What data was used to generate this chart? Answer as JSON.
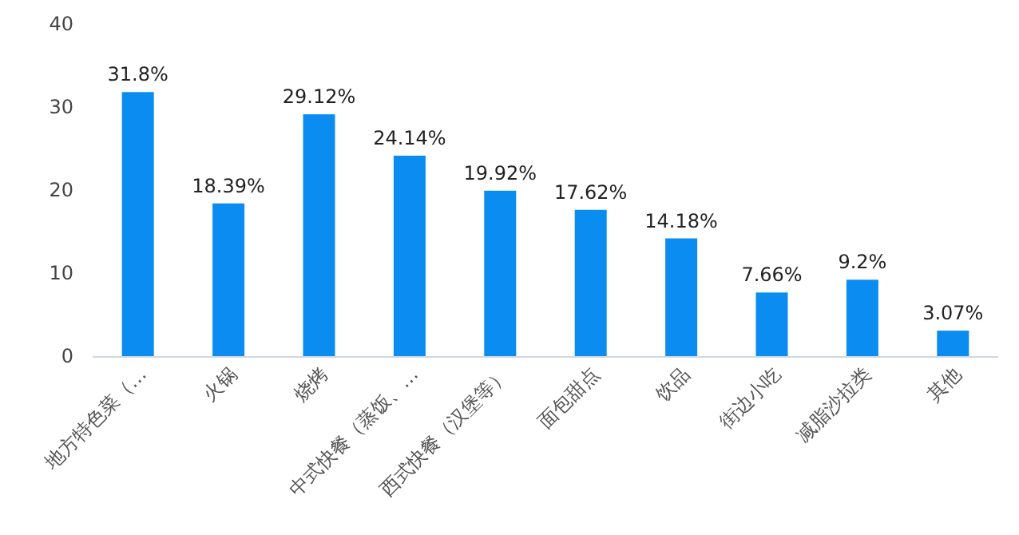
{
  "chart_data": {
    "type": "bar",
    "categories": [
      "地方特色菜（…",
      "火锅",
      "烧烤",
      "中式快餐（蒸饭、…",
      "西式快餐（汉堡等）",
      "面包甜点",
      "饮品",
      "街边小吃",
      "减脂沙拉类",
      "其他"
    ],
    "values": [
      31.8,
      18.39,
      29.12,
      24.14,
      19.92,
      17.62,
      14.18,
      7.66,
      9.2,
      3.07
    ],
    "value_labels": [
      "31.8%",
      "18.39%",
      "29.12%",
      "24.14%",
      "19.92%",
      "17.62%",
      "14.18%",
      "7.66%",
      "9.2%",
      "3.07%"
    ],
    "color": "#0a8cf0",
    "ylim": [
      0,
      40
    ],
    "yticks": [
      0,
      10,
      20,
      30,
      40
    ],
    "grid": false
  }
}
